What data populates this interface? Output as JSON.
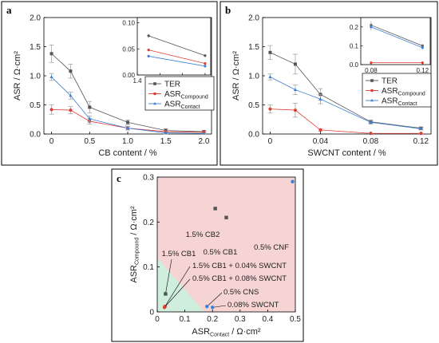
{
  "chart_data": [
    {
      "panel": "a",
      "type": "line",
      "xlabel": "CB content / %",
      "ylabel": "ASR / Ω·cm²",
      "x_ticks": [
        "0",
        "0.5",
        "1.0",
        "1.5",
        "2.0"
      ],
      "y_ticks": [
        "0.0",
        "0.5",
        "1.0",
        "1.5",
        "2.0"
      ],
      "xlim": [
        -0.1,
        2.1
      ],
      "ylim": [
        0,
        2.0
      ],
      "categories": [
        0,
        0.25,
        0.5,
        1.0,
        1.5,
        2.0
      ],
      "series": [
        {
          "name": "TER",
          "color": "#555555",
          "marker": "square",
          "values": [
            1.38,
            1.08,
            0.46,
            0.2,
            0.06,
            0.04
          ],
          "errors": [
            0.15,
            0.12,
            0.1,
            0.04,
            0.03,
            0.02
          ]
        },
        {
          "name": "ASR",
          "name_sub": "Compound",
          "color": "#e03c31",
          "marker": "circle",
          "values": [
            0.42,
            0.41,
            0.22,
            0.1,
            0.04,
            0.03
          ],
          "errors": [
            0.08,
            0.06,
            0.05,
            0.03,
            0.02,
            0.01
          ]
        },
        {
          "name": "ASR",
          "name_sub": "Contact",
          "color": "#3b7fd6",
          "marker": "triangle",
          "values": [
            0.98,
            0.66,
            0.26,
            0.1,
            0.02,
            0.01
          ],
          "errors": [
            0.06,
            0.06,
            0.05,
            0.03,
            0.02,
            0.01
          ]
        }
      ],
      "inset": {
        "x_ticks": [
          "1.4",
          "1.6",
          "1.8",
          "2.0"
        ],
        "y_ticks": [
          "0.00",
          "0.05",
          "0.10"
        ],
        "xlim": [
          1.4,
          2.05
        ],
        "ylim": [
          0,
          0.11
        ],
        "x": [
          1.5,
          2.0
        ],
        "series": [
          {
            "color": "#555555",
            "values": [
              0.075,
              0.037
            ],
            "errors": [
              0.004,
              0.003
            ]
          },
          {
            "color": "#e03c31",
            "values": [
              0.048,
              0.022
            ],
            "errors": [
              0.003,
              0.002
            ]
          },
          {
            "color": "#3b7fd6",
            "values": [
              0.036,
              0.017
            ],
            "errors": [
              0.003,
              0.002
            ]
          }
        ]
      },
      "legend": "right"
    },
    {
      "panel": "b",
      "type": "line",
      "xlabel": "SWCNT content / %",
      "ylabel": "ASR / Ω·cm²",
      "x_ticks": [
        "0",
        "0.04",
        "0.08",
        "0.12"
      ],
      "y_ticks": [
        "0.0",
        "0.5",
        "1.0",
        "1.5",
        "2.0"
      ],
      "xlim": [
        -0.006,
        0.128
      ],
      "ylim": [
        0,
        2.0
      ],
      "categories": [
        0,
        0.02,
        0.04,
        0.08,
        0.12
      ],
      "series": [
        {
          "name": "TER",
          "color": "#555555",
          "marker": "square",
          "values": [
            1.4,
            1.2,
            0.68,
            0.21,
            0.1
          ],
          "errors": [
            0.12,
            0.17,
            0.1,
            0.03,
            0.02
          ]
        },
        {
          "name": "ASR",
          "name_sub": "Compound",
          "color": "#e03c31",
          "marker": "circle",
          "values": [
            0.43,
            0.41,
            0.07,
            0.01,
            0.01
          ],
          "errors": [
            0.07,
            0.12,
            0.02,
            0.005,
            0.005
          ]
        },
        {
          "name": "ASR",
          "name_sub": "Contact",
          "color": "#3b7fd6",
          "marker": "triangle",
          "values": [
            0.98,
            0.76,
            0.6,
            0.2,
            0.09
          ],
          "errors": [
            0.05,
            0.08,
            0.08,
            0.03,
            0.02
          ]
        }
      ],
      "inset": {
        "x_ticks": [
          "0.08",
          "0.12"
        ],
        "y_ticks": [
          "0.0",
          "0.1",
          "0.2"
        ],
        "xlim": [
          0.072,
          0.126
        ],
        "ylim": [
          0,
          0.25
        ],
        "x": [
          0.08,
          0.12
        ],
        "series": [
          {
            "color": "#555555",
            "values": [
              0.21,
              0.1
            ],
            "errors": [
              0.02,
              0.01
            ]
          },
          {
            "color": "#e03c31",
            "values": [
              0.01,
              0.01
            ],
            "errors": [
              0.003,
              0.003
            ]
          },
          {
            "color": "#3b7fd6",
            "values": [
              0.2,
              0.09
            ],
            "errors": [
              0.02,
              0.01
            ]
          }
        ]
      },
      "legend": "right"
    },
    {
      "panel": "c",
      "type": "scatter",
      "xlabel": "ASR",
      "xlabel_sub": "Contact",
      "xlabel_unit": " / Ω·cm²",
      "ylabel": "ASR",
      "ylabel_sub": "Compound",
      "ylabel_unit": " / Ω·cm²",
      "x_ticks": [
        "0",
        "0.1",
        "0.2",
        "0.3",
        "0.4",
        "0.5"
      ],
      "y_ticks": [
        "0",
        "0.1",
        "0.2",
        "0.3"
      ],
      "xlim": [
        0,
        0.5
      ],
      "ylim": [
        0,
        0.3
      ],
      "regions": {
        "red_color": "#f7d4d4",
        "green_color": "#cfeedd"
      },
      "points": [
        {
          "label": "0.5% CNF",
          "x": 0.49,
          "y": 0.29,
          "color": "#3b7fd6",
          "marker": "circle"
        },
        {
          "label": "1.5% CB2",
          "x": 0.21,
          "y": 0.23,
          "color": "#555555",
          "marker": "square"
        },
        {
          "label": "0.5% CB1",
          "x": 0.25,
          "y": 0.21,
          "color": "#555555",
          "marker": "square"
        },
        {
          "label": "1.5% CB1",
          "x": 0.03,
          "y": 0.04,
          "color": "#555555",
          "marker": "square"
        },
        {
          "label": "1.5% CB1 + 0.04% SWCNT",
          "x": 0.028,
          "y": 0.012,
          "color": "#e03c31",
          "marker": "circle"
        },
        {
          "label": "0.5% CB1 + 0.08% SWCNT",
          "x": 0.026,
          "y": 0.01,
          "color": "#e03c31",
          "marker": "circle"
        },
        {
          "label": "0.5% CNS",
          "x": 0.18,
          "y": 0.012,
          "color": "#3b7fd6",
          "marker": "circle"
        },
        {
          "label": "0.08% SWCNT",
          "x": 0.2,
          "y": 0.01,
          "color": "#3b7fd6",
          "marker": "circle"
        }
      ]
    }
  ]
}
